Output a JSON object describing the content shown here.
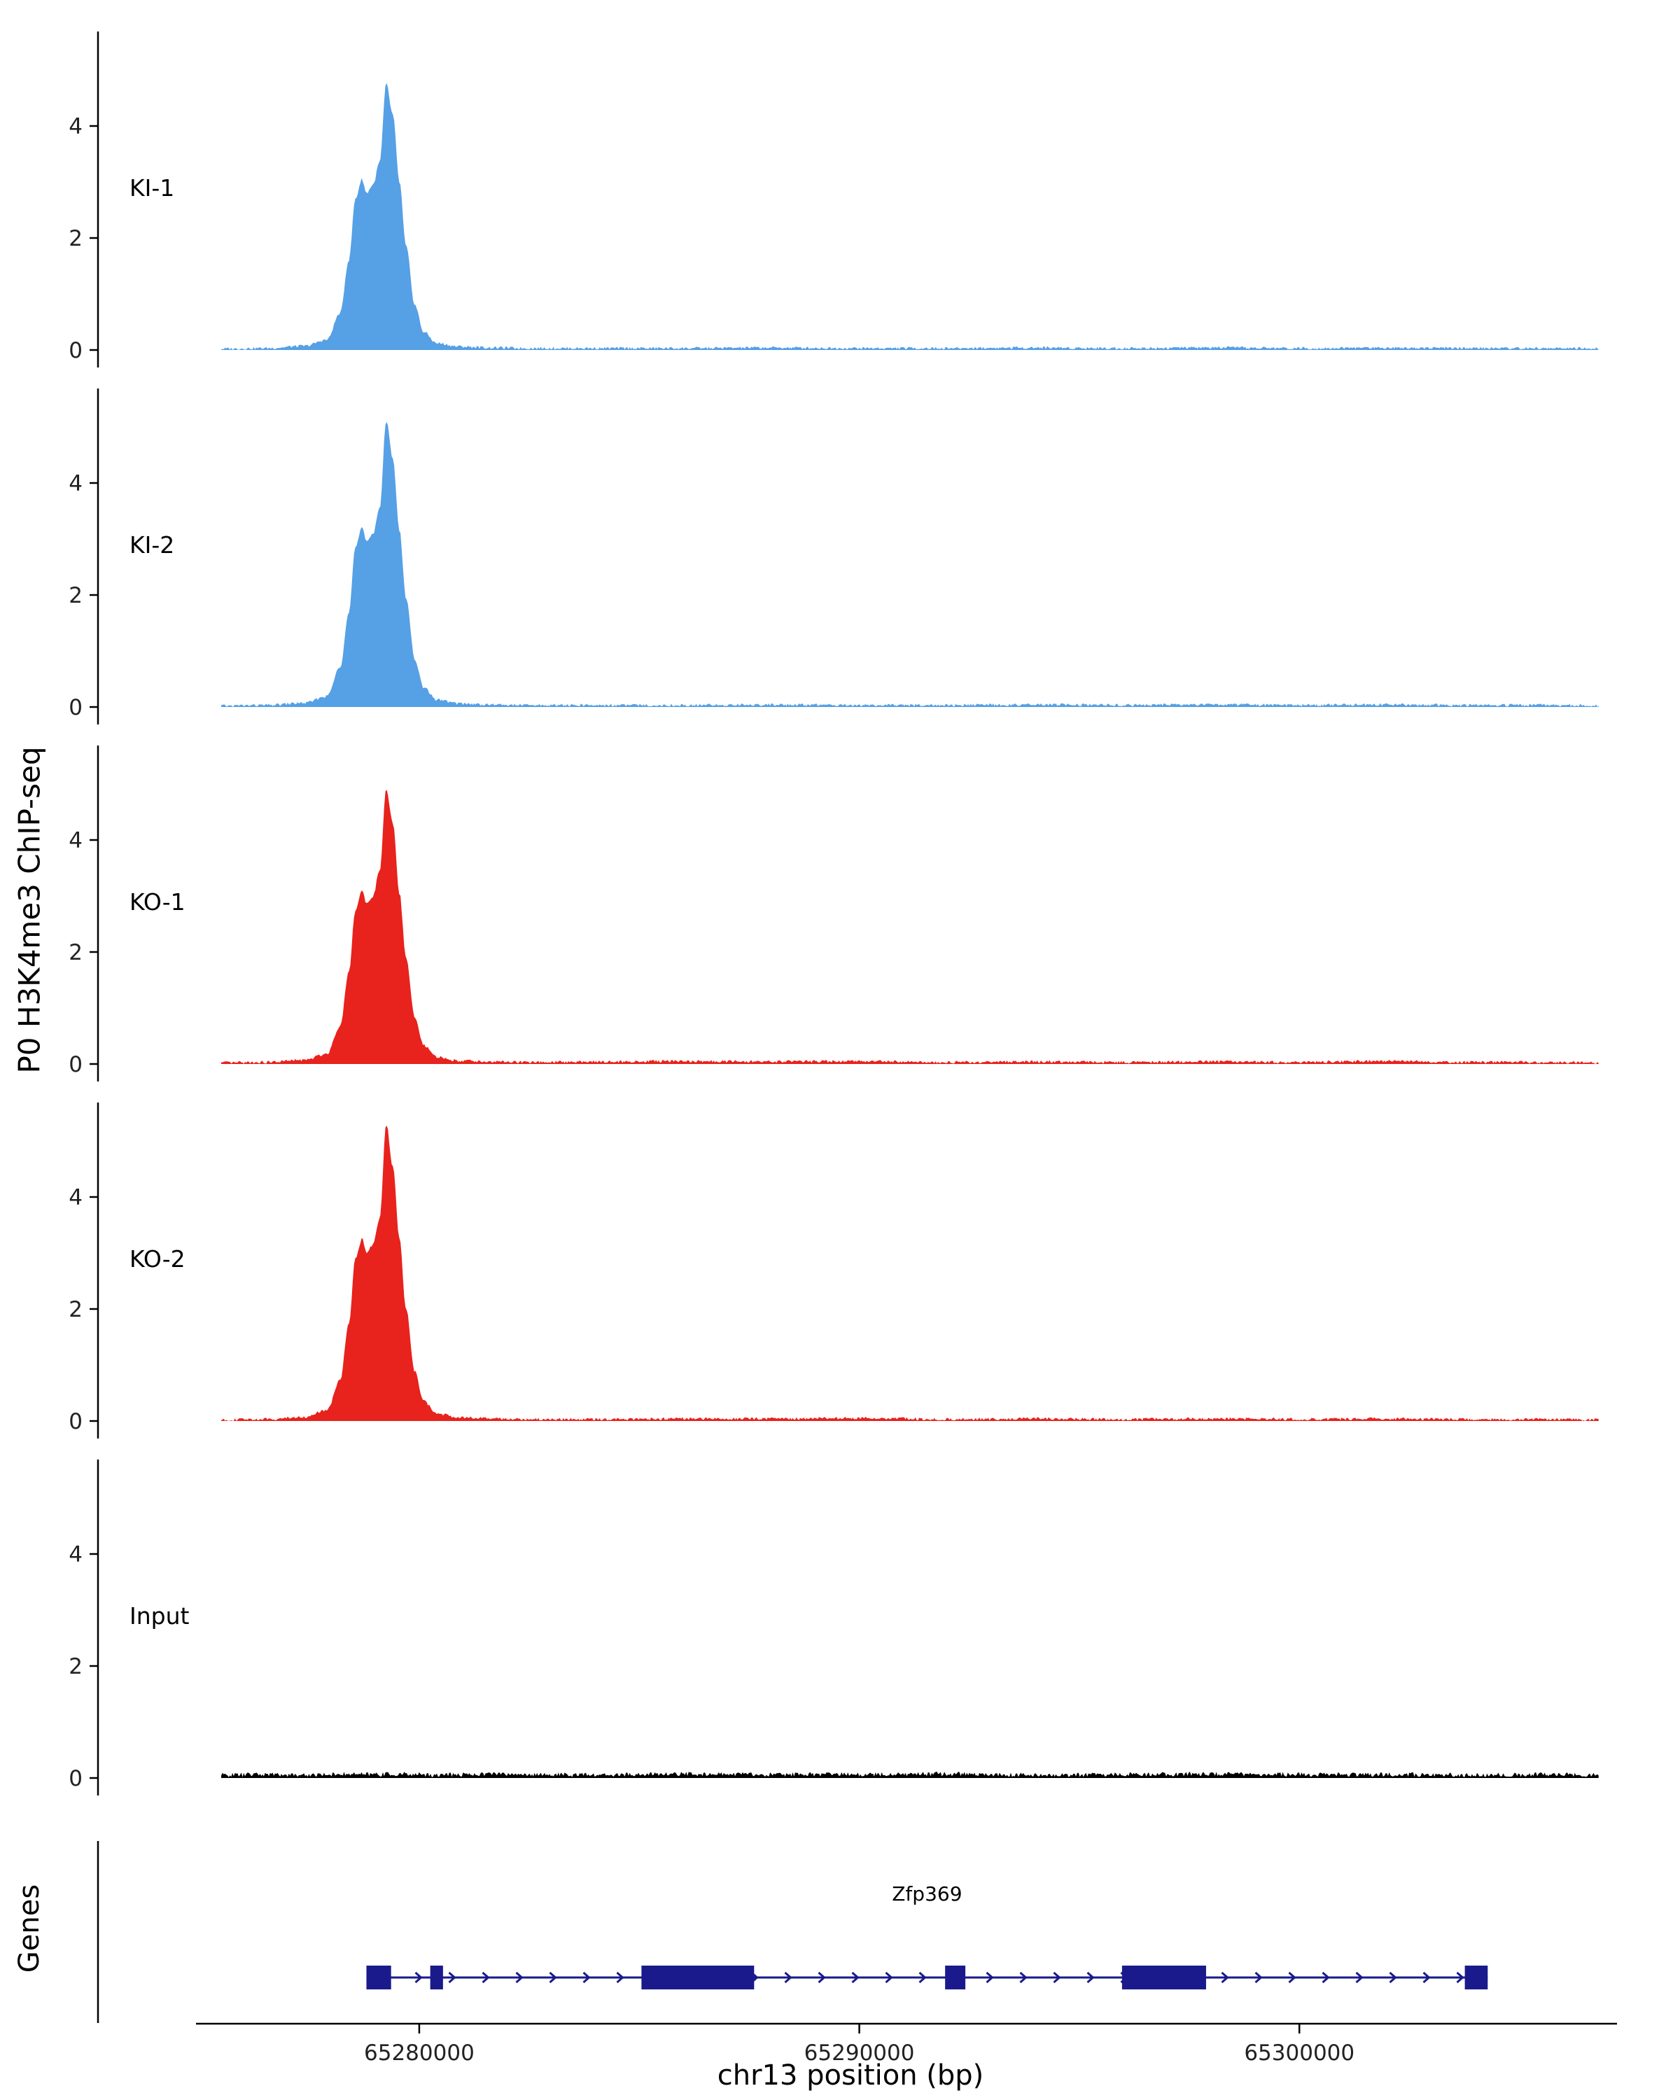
{
  "figure": {
    "ylabel_main": "P0 H3K4me3 ChIP-seq",
    "ylabel_genes": "Genes",
    "xlabel": "chr13 position (bp)",
    "background": "#ffffff",
    "axis_color": "#000000"
  },
  "chart_data": {
    "type": "area",
    "title": "",
    "xlabel": "chr13 position (bp)",
    "ylabel": "P0 H3K4me3 ChIP-seq",
    "grid": false,
    "legend": false,
    "xlim": [
      65272700,
      65306900
    ],
    "ylim": [
      0,
      5.5
    ],
    "yticks": [
      0,
      2,
      4
    ],
    "xticks": [
      65280000,
      65290000,
      65300000
    ],
    "xtick_labels": [
      "65280000",
      "65290000",
      "65300000"
    ],
    "x": [
      65275500,
      65276500,
      65277400,
      65277900,
      65278200,
      65278400,
      65278550,
      65278700,
      65278800,
      65278950,
      65279100,
      65279250,
      65279400,
      65279550,
      65279700,
      65279900,
      65280100,
      65280400,
      65280900,
      65281600,
      65282500,
      65284000,
      65286000,
      65288000,
      65290000,
      65292000,
      65294000,
      65296000,
      65298000,
      65300000,
      65302000,
      65304000,
      65306000,
      65306800
    ],
    "tracks": [
      {
        "name": "KI-1",
        "color": "#56A0E6",
        "noise": 0.025,
        "values": [
          0.02,
          0.03,
          0.07,
          0.18,
          0.65,
          1.6,
          2.7,
          3.05,
          2.8,
          2.95,
          3.35,
          4.75,
          4.2,
          3.0,
          1.85,
          0.8,
          0.32,
          0.12,
          0.06,
          0.04,
          0.03,
          0.03,
          0.03,
          0.04,
          0.03,
          0.03,
          0.04,
          0.03,
          0.04,
          0.03,
          0.04,
          0.03,
          0.03,
          0.02
        ]
      },
      {
        "name": "KI-2",
        "color": "#56A0E6",
        "noise": 0.025,
        "values": [
          0.02,
          0.03,
          0.07,
          0.19,
          0.7,
          1.7,
          2.85,
          3.2,
          2.95,
          3.1,
          3.55,
          5.1,
          4.45,
          3.15,
          1.95,
          0.85,
          0.34,
          0.13,
          0.06,
          0.04,
          0.03,
          0.03,
          0.03,
          0.04,
          0.03,
          0.03,
          0.04,
          0.03,
          0.04,
          0.03,
          0.04,
          0.03,
          0.03,
          0.02
        ]
      },
      {
        "name": "KO-1",
        "color": "#E8221C",
        "noise": 0.025,
        "values": [
          0.02,
          0.03,
          0.07,
          0.18,
          0.67,
          1.65,
          2.75,
          3.1,
          2.85,
          3.0,
          3.45,
          4.9,
          4.3,
          3.05,
          1.9,
          0.82,
          0.33,
          0.12,
          0.06,
          0.04,
          0.03,
          0.04,
          0.05,
          0.04,
          0.05,
          0.03,
          0.04,
          0.03,
          0.04,
          0.03,
          0.05,
          0.03,
          0.03,
          0.02
        ]
      },
      {
        "name": "KO-2",
        "color": "#E8221C",
        "noise": 0.025,
        "values": [
          0.02,
          0.03,
          0.07,
          0.19,
          0.72,
          1.75,
          2.9,
          3.25,
          3.0,
          3.15,
          3.6,
          5.3,
          4.55,
          3.25,
          2.0,
          0.88,
          0.35,
          0.13,
          0.07,
          0.04,
          0.03,
          0.03,
          0.04,
          0.04,
          0.05,
          0.03,
          0.04,
          0.03,
          0.04,
          0.03,
          0.04,
          0.03,
          0.03,
          0.02
        ]
      },
      {
        "name": "Input",
        "color": "#000000",
        "noise": 0.04,
        "values": [
          0.05,
          0.06,
          0.05,
          0.06,
          0.07,
          0.06,
          0.07,
          0.06,
          0.06,
          0.07,
          0.06,
          0.07,
          0.06,
          0.06,
          0.07,
          0.06,
          0.06,
          0.05,
          0.06,
          0.07,
          0.06,
          0.05,
          0.07,
          0.06,
          0.06,
          0.07,
          0.05,
          0.06,
          0.07,
          0.06,
          0.06,
          0.05,
          0.06,
          0.05
        ]
      }
    ],
    "gene_track": {
      "genes": [
        {
          "name": "Zfp369",
          "start": 65278800,
          "end": 65304280,
          "strand": "+",
          "color": "#1A1A8C",
          "exons": [
            [
              65278800,
              65279360
            ],
            [
              65280250,
              65280540
            ],
            [
              65285050,
              65287610
            ],
            [
              65291950,
              65292410
            ],
            [
              65295970,
              65297880
            ],
            [
              65303760,
              65304280
            ]
          ]
        }
      ]
    }
  }
}
